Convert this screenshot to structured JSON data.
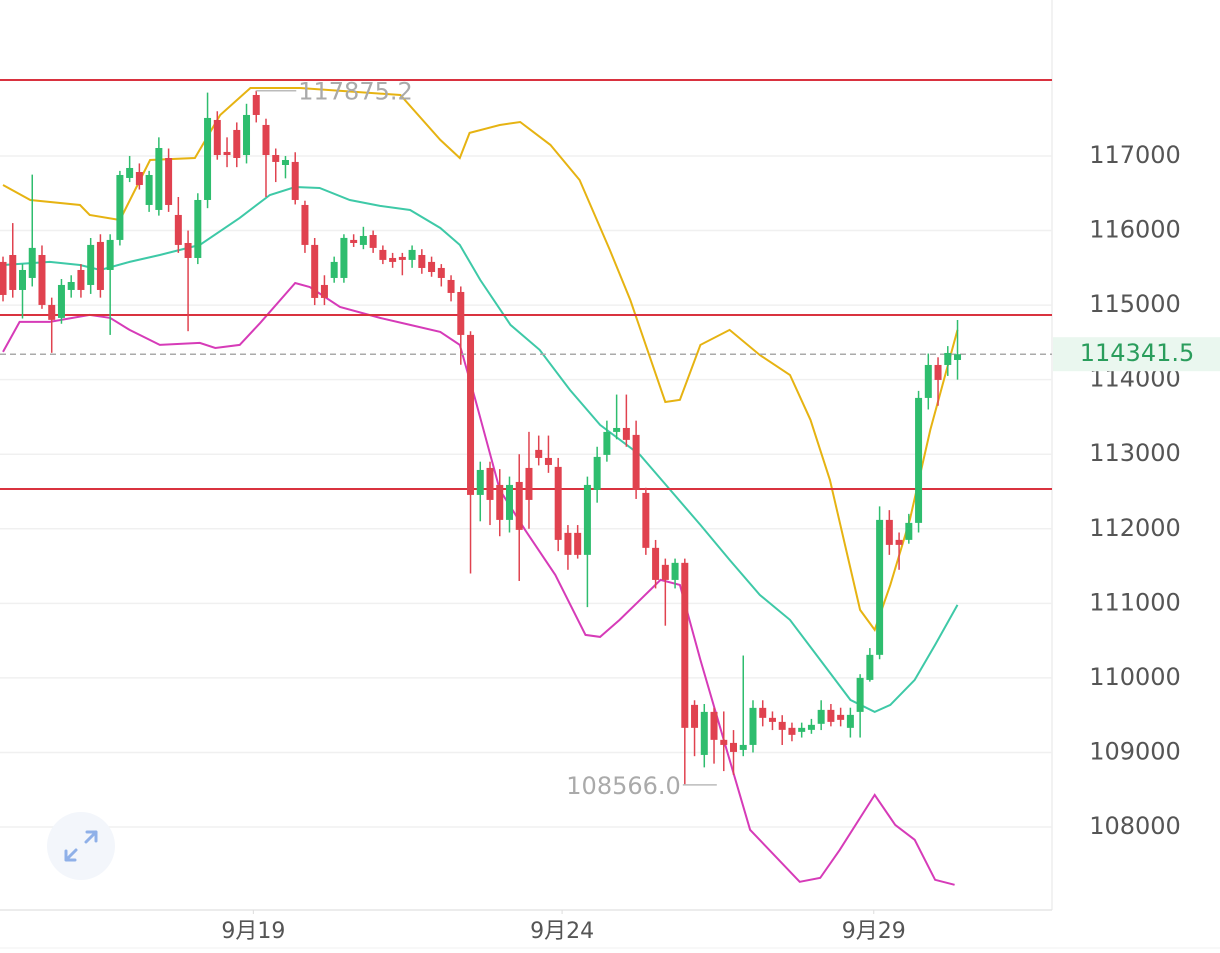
{
  "chart_data": {
    "type": "candlestick",
    "up_color": "#2ebd6e",
    "down_color": "#e0424f",
    "xlim": [
      -0.31,
      107.7
    ],
    "ylim": [
      106887,
      119092
    ],
    "yticks": [
      108000,
      109000,
      110000,
      111000,
      112000,
      113000,
      114000,
      115000,
      116000,
      117000
    ],
    "xticks": [
      {
        "value": 25.7,
        "label": "9月19"
      },
      {
        "value": 57.4,
        "label": "9月24"
      },
      {
        "value": 89.4,
        "label": "9月29"
      }
    ],
    "grid": true,
    "open": [
      115579,
      115672,
      115203,
      115364,
      115672,
      115002,
      114828,
      115203,
      115471,
      115270,
      115847,
      115471,
      115874,
      116705,
      116785,
      116343,
      116276,
      116973,
      116209,
      115833,
      115632,
      116410,
      117483,
      117054,
      117349,
      117013,
      117818,
      117416,
      117013,
      116879,
      116920,
      116343,
      115807,
      115270,
      115364,
      115364,
      115874,
      115807,
      115940,
      115740,
      115632,
      115646,
      115606,
      115672,
      115579,
      115498,
      115337,
      115176,
      114600,
      112454,
      112816,
      112588,
      112119,
      112628,
      112816,
      113058,
      112950,
      112830,
      111945,
      111945,
      111650,
      112521,
      112991,
      113299,
      113352,
      113259,
      112481,
      111744,
      111516,
      111314,
      111543,
      109638,
      108967,
      109544,
      109169,
      109128,
      109034,
      109101,
      109598,
      109464,
      109410,
      109330,
      109276,
      109303,
      109384,
      109571,
      109504,
      109330,
      109544,
      109973,
      110309,
      112119,
      111851,
      111851,
      112079,
      113755,
      114197,
      114197,
      114264
    ],
    "high": [
      115650,
      116100,
      115550,
      116750,
      115800,
      115100,
      115350,
      115400,
      115550,
      115900,
      115950,
      115950,
      116800,
      117000,
      116900,
      116800,
      117250,
      117100,
      116450,
      116000,
      116500,
      117850,
      117600,
      117250,
      117450,
      117700,
      117875.2,
      117500,
      117100,
      117000,
      117050,
      116400,
      115900,
      115400,
      115650,
      115950,
      115950,
      116050,
      116000,
      115800,
      115700,
      115700,
      115800,
      115750,
      115650,
      115550,
      115400,
      115250,
      114650,
      112900,
      112900,
      112800,
      112700,
      113000,
      113300,
      113250,
      113250,
      112950,
      112050,
      112050,
      112700,
      113100,
      113450,
      113800,
      113800,
      113450,
      112550,
      111850,
      111600,
      111600,
      111600,
      109700,
      109650,
      109600,
      109550,
      109300,
      110300,
      109700,
      109700,
      109550,
      109500,
      109400,
      109400,
      109450,
      109700,
      109650,
      109600,
      109600,
      110050,
      110400,
      112300,
      112250,
      111950,
      112200,
      113850,
      114350,
      114300,
      114450,
      114800
    ],
    "low": [
      115050,
      115100,
      114820,
      115250,
      114950,
      114360,
      114750,
      115100,
      115100,
      115150,
      115100,
      114600,
      115800,
      116650,
      116550,
      116250,
      116200,
      116250,
      115700,
      114650,
      115550,
      116300,
      116950,
      116850,
      116850,
      116900,
      117450,
      116450,
      116650,
      116700,
      116350,
      115700,
      115000,
      115000,
      115300,
      115300,
      115780,
      115750,
      115700,
      115550,
      115500,
      115400,
      115500,
      115420,
      115380,
      115250,
      115050,
      114200,
      111400,
      112100,
      112050,
      111900,
      111950,
      111300,
      112000,
      112850,
      112750,
      111700,
      111450,
      111600,
      110950,
      112350,
      112900,
      113200,
      113100,
      112400,
      111650,
      111200,
      110700,
      111200,
      108566,
      108950,
      108800,
      108850,
      108750,
      108700,
      108950,
      109000,
      109350,
      109300,
      109100,
      109150,
      109200,
      109250,
      109300,
      109350,
      109350,
      109200,
      109200,
      109950,
      110250,
      111650,
      111450,
      111800,
      111950,
      113600,
      113650,
      114050,
      114000
    ],
    "close": [
      115136,
      115203,
      115471,
      115767,
      115002,
      114802,
      115270,
      115310,
      115203,
      115807,
      115203,
      115874,
      116745,
      116839,
      116611,
      116745,
      117107,
      116343,
      115807,
      115632,
      116410,
      117510,
      117013,
      117013,
      116973,
      117550,
      117550,
      117013,
      116920,
      116946,
      116410,
      115807,
      115096,
      115096,
      115579,
      115901,
      115833,
      115927,
      115767,
      115606,
      115579,
      115606,
      115740,
      115498,
      115444,
      115364,
      115163,
      114600,
      112454,
      112789,
      112387,
      112119,
      112588,
      111985,
      112387,
      112950,
      112856,
      111851,
      111650,
      111650,
      112588,
      112964,
      113299,
      113352,
      113192,
      112521,
      111744,
      111314,
      111314,
      111543,
      109330,
      109330,
      109544,
      109169,
      109101,
      109007,
      109101,
      109598,
      109464,
      109410,
      109303,
      109236,
      109330,
      109370,
      109571,
      109410,
      109437,
      109504,
      110000,
      110309,
      112119,
      111784,
      111784,
      112079,
      113755,
      114197,
      113996,
      114358,
      114341.5
    ],
    "series": [
      {
        "color": "#e6b312",
        "x": [
          0,
          2.8,
          7.9,
          8.9,
          12,
          15.1,
          19.7,
          22.3,
          25.4,
          30.5,
          40.8,
          44.9,
          46.9,
          47.9,
          51,
          53.1,
          56.2,
          59.2,
          62.3,
          64.4,
          68,
          69.5,
          71.6,
          74.6,
          77.7,
          80.8,
          82.9,
          84.9,
          88,
          89.5,
          91.1,
          93.1,
          95.2,
          98
        ],
        "values": [
          116611,
          116410,
          116343,
          116209,
          116142,
          116946,
          116973,
          117550,
          117912,
          117912,
          117818,
          117215,
          116973,
          117309,
          117416,
          117456,
          117148,
          116678,
          115740,
          115069,
          113701,
          113728,
          114466,
          114667,
          114331,
          114063,
          113460,
          112655,
          110912,
          110644,
          111247,
          112119,
          113326,
          114667
        ]
      },
      {
        "color": "#3ec9a7",
        "x": [
          0,
          4.8,
          7.9,
          10,
          13,
          16.1,
          20.2,
          24.3,
          27.4,
          30,
          32.5,
          35.6,
          38.7,
          41.8,
          44.9,
          46.9,
          49,
          52.1,
          55.1,
          58.2,
          61.3,
          65.4,
          68.5,
          71.6,
          74.6,
          77.7,
          80.8,
          83.9,
          87,
          89.5,
          91.1,
          93.6,
          95.7,
          98
        ],
        "values": [
          115538,
          115579,
          115538,
          115471,
          115579,
          115672,
          115807,
          116169,
          116477,
          116584,
          116571,
          116410,
          116330,
          116276,
          116034,
          115807,
          115337,
          114734,
          114399,
          113862,
          113393,
          112991,
          112521,
          112052,
          111582,
          111113,
          110778,
          110241,
          109705,
          109544,
          109638,
          109973,
          110443,
          110979
        ]
      },
      {
        "color": "#d63bb8",
        "x": [
          0,
          1.7,
          4.8,
          8.9,
          11,
          13,
          16.1,
          20.2,
          21.8,
          24.3,
          26.4,
          30,
          31.5,
          34.6,
          38.7,
          41.8,
          44.9,
          46.9,
          48.5,
          51,
          53.6,
          56.7,
          59.8,
          61.3,
          63.3,
          67.5,
          69.5,
          71.6,
          74.6,
          76.7,
          81.8,
          83.9,
          85.9,
          89.5,
          91.6,
          93.6,
          95.7,
          97.7
        ],
        "values": [
          114372,
          114774,
          114774,
          114868,
          114828,
          114667,
          114466,
          114493,
          114425,
          114466,
          114761,
          115297,
          115243,
          114975,
          114828,
          114734,
          114640,
          114466,
          113728,
          112521,
          111985,
          111381,
          110577,
          110550,
          110778,
          111314,
          111247,
          110241,
          108901,
          107962,
          107265,
          107318,
          107693,
          108431,
          108029,
          107828,
          107292,
          107225
        ]
      }
    ],
    "levels": [
      118019,
      114868,
      112534
    ],
    "level_color": "#d9323f",
    "last_price": 114341.5,
    "annotations": [
      {
        "x": 26,
        "value": 117875.2,
        "side": "right"
      },
      {
        "x": 70,
        "value": {
          "value": 108566,
          "label": "108566.0"
        },
        "side": "left"
      }
    ]
  }
}
